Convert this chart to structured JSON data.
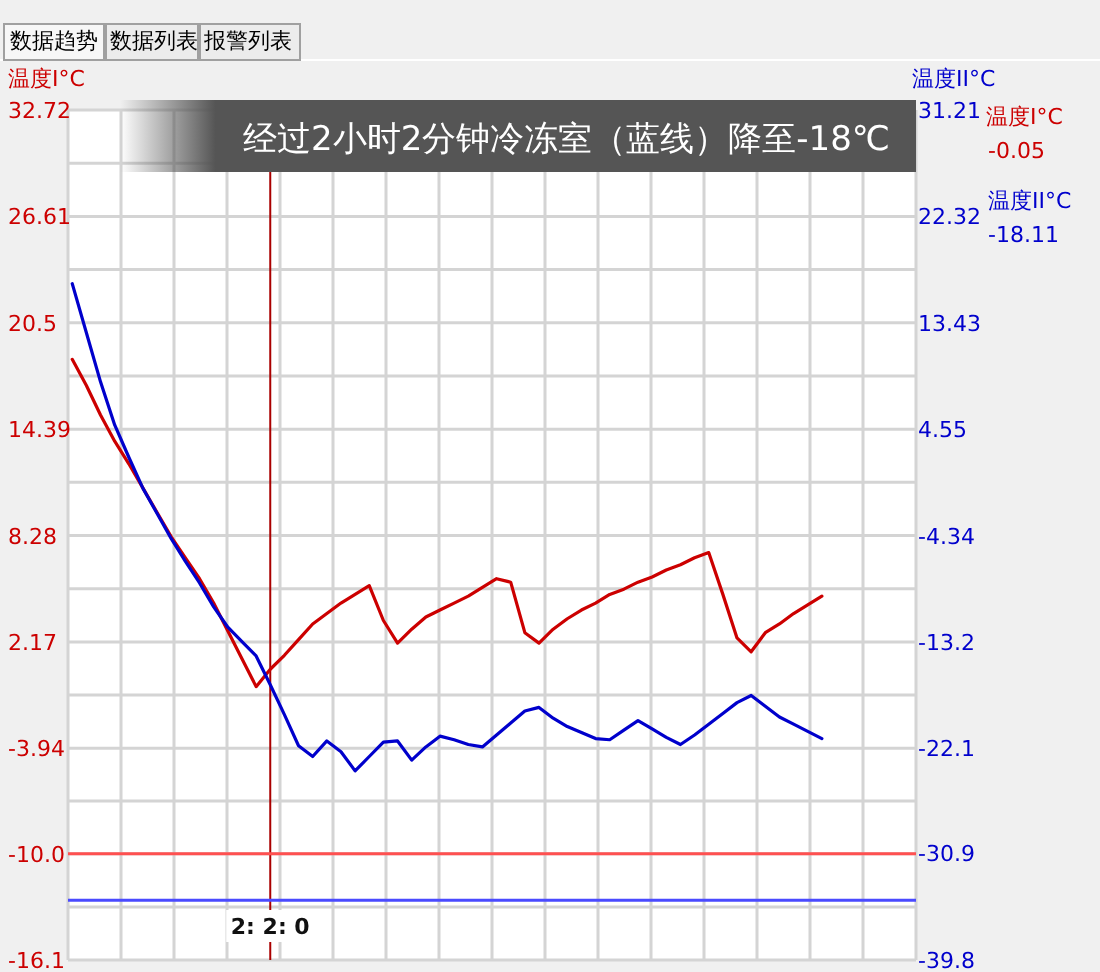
{
  "chart_data": {
    "type": "line",
    "title": "经过2小时2分钟冷冻室（蓝线）降至-18℃",
    "ylabel": "温度I°C",
    "y2label": "温度II°C",
    "annotations": [
      "数据趋势",
      "数据列表",
      "报警列表",
      "温度I°C",
      "-0.05",
      "温度II°C",
      "-18.11"
    ],
    "categories": [
      null,
      null,
      null,
      null,
      null,
      null,
      null,
      null,
      null,
      null,
      null,
      null,
      null,
      null,
      "2: 2: 0",
      null,
      null,
      null,
      null,
      null,
      null,
      null,
      null,
      null,
      null,
      null,
      null,
      null,
      null,
      null,
      null,
      null,
      null,
      null,
      null,
      null,
      null,
      null,
      null,
      null,
      null,
      null,
      null,
      null,
      null,
      null,
      null,
      null,
      null,
      null,
      null,
      null,
      null,
      null
    ],
    "ylim": [
      -16.1,
      32.72
    ],
    "yticks": [
      32.72,
      {
        "value": 29.665,
        "label": null
      },
      26.61,
      {
        "value": 23.555,
        "label": null
      },
      20.5,
      {
        "value": 17.445,
        "label": null
      },
      14.39,
      {
        "value": 11.335,
        "label": null
      },
      8.28,
      {
        "value": 5.225,
        "label": null
      },
      2.17,
      {
        "value": -0.885,
        "label": null
      },
      -3.94,
      {
        "value": -6.97,
        "label": null
      },
      {
        "value": -10.0,
        "label": "-10.0"
      },
      {
        "value": -13.05,
        "label": null
      },
      -16.1
    ],
    "y2lim": [
      -39.8,
      31.21
    ],
    "y2ticks": [
      31.21,
      22.32,
      13.43,
      4.55,
      -4.34,
      -13.2,
      -22.1,
      -30.9,
      -39.8
    ],
    "grid": true,
    "ref_lines": [
      {
        "axis": "x",
        "value": "2: 2: 0",
        "color": "#aa0000"
      },
      {
        "axis": "y",
        "value": -10.0,
        "color": "#ff5050"
      },
      {
        "axis": "y2",
        "value": -34.8,
        "color": "#4a4aff"
      }
    ],
    "series": [
      {
        "color": "#cc0000",
        "values": [
          18.4,
          16.9,
          15.2,
          13.7,
          12.4,
          11.0,
          9.6,
          8.2,
          7.0,
          5.8,
          4.4,
          2.8,
          1.2,
          -0.4,
          0.6,
          1.4,
          2.3,
          3.2,
          3.8,
          4.4,
          4.9,
          5.4,
          3.4,
          2.1,
          2.9,
          3.6,
          4.0,
          4.4,
          4.8,
          5.3,
          5.8,
          5.6,
          2.7,
          2.1,
          2.9,
          3.5,
          4.0,
          4.4,
          4.9,
          5.2,
          5.6,
          5.9,
          6.3,
          6.6,
          7.0,
          7.3,
          4.9,
          2.4,
          1.6,
          2.7,
          3.2,
          3.8,
          4.3,
          4.8
        ]
      },
      {
        "color": "#0000cc",
        "axis": "y2",
        "values": [
          16.7,
          12.6,
          8.5,
          4.9,
          2.2,
          -0.4,
          -2.5,
          -4.6,
          -6.5,
          -8.3,
          -10.3,
          -12.0,
          -13.2,
          -14.4,
          -16.8,
          -19.3,
          -21.9,
          -22.8,
          -21.5,
          -22.4,
          -24.0,
          -22.8,
          -21.6,
          -21.5,
          -23.1,
          -22.0,
          -21.1,
          -21.4,
          -21.8,
          -22.0,
          -21.0,
          -20.0,
          -19.0,
          -18.7,
          -19.6,
          -20.3,
          -20.8,
          -21.3,
          -21.4,
          -20.6,
          -19.8,
          -20.5,
          -21.2,
          -21.8,
          -21.0,
          -20.1,
          -19.2,
          -18.3,
          -17.7,
          -18.6,
          -19.5,
          -20.1,
          -20.7,
          -21.3
        ]
      }
    ]
  }
}
